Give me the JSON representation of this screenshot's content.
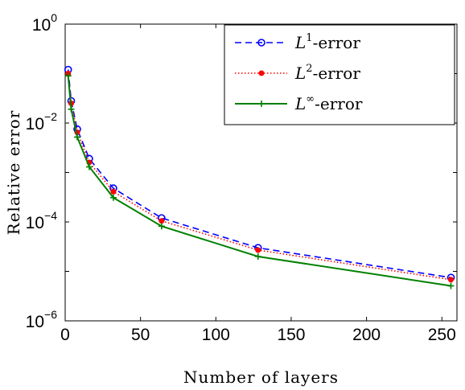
{
  "chart_data": {
    "type": "line",
    "xlabel": "Number of layers",
    "ylabel": "Relative error",
    "xlim": [
      0,
      260
    ],
    "ylim": [
      1e-06,
      1
    ],
    "yscale": "log",
    "grid": false,
    "legend_position": "top-right",
    "x_ticks": [
      {
        "value": 0,
        "label": "0"
      },
      {
        "value": 50,
        "label": "50"
      },
      {
        "value": 100,
        "label": "100"
      },
      {
        "value": 150,
        "label": "150"
      },
      {
        "value": 200,
        "label": "200"
      },
      {
        "value": 250,
        "label": "250"
      }
    ],
    "y_ticks": [
      {
        "value": 1e-06,
        "base": "10",
        "exp": "−6"
      },
      {
        "value": 0.0001,
        "base": "10",
        "exp": "−4"
      },
      {
        "value": 0.01,
        "base": "10",
        "exp": "−2"
      },
      {
        "value": 1,
        "base": "10",
        "exp": "0"
      }
    ],
    "x": [
      2,
      4,
      8,
      16,
      32,
      64,
      128,
      256
    ],
    "series": [
      {
        "name": "L1-error",
        "legend_base": "L",
        "legend_sup": "1",
        "legend_suffix": "-error",
        "color": "#0000ff",
        "dash": "8,5",
        "marker": "circle",
        "values": [
          0.12,
          0.028,
          0.0075,
          0.0019,
          0.00048,
          0.00012,
          3e-05,
          7.5e-06
        ]
      },
      {
        "name": "L2-error",
        "legend_base": "L",
        "legend_sup": "2",
        "legend_suffix": "-error",
        "color": "#ff0000",
        "dash": "1.5,2.5",
        "marker": "dot",
        "values": [
          0.1,
          0.025,
          0.0065,
          0.0016,
          0.00041,
          0.000105,
          2.7e-05,
          6.8e-06
        ]
      },
      {
        "name": "L∞-error",
        "legend_base": "L",
        "legend_sup": "∞",
        "legend_suffix": "-error",
        "color": "#008000",
        "dash": "",
        "marker": "plus",
        "values": [
          0.09,
          0.019,
          0.0052,
          0.0013,
          0.00031,
          8.2e-05,
          2e-05,
          5.1e-06
        ]
      }
    ]
  }
}
